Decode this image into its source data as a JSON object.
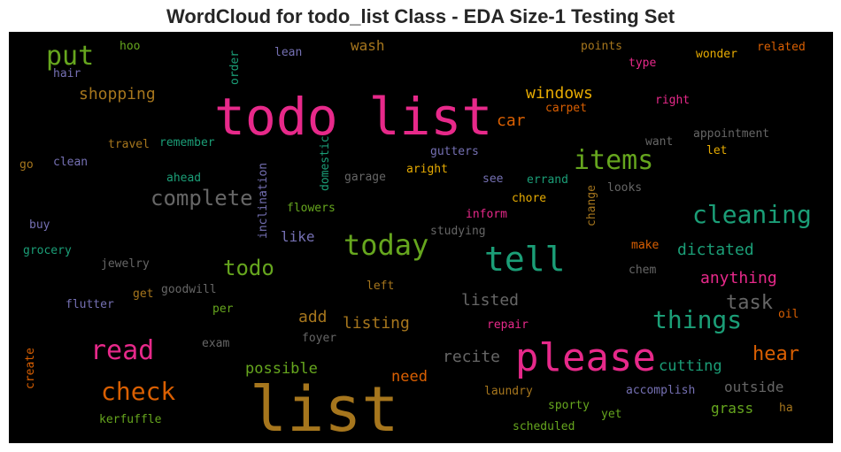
{
  "chart_data": {
    "type": "wordcloud",
    "title": "WordCloud for todo_list Class - EDA Size-1 Testing Set",
    "background": "#000000",
    "colormap": "Dark2",
    "words": [
      {
        "text": "todo list",
        "color": "#e7298a",
        "rel_size": 1.0
      },
      {
        "text": "list",
        "color": "#a6761d",
        "rel_size": 1.0
      },
      {
        "text": "please",
        "color": "#e7298a",
        "rel_size": 0.72
      },
      {
        "text": "tell",
        "color": "#1b9e77",
        "rel_size": 0.62
      },
      {
        "text": "today",
        "color": "#66a61e",
        "rel_size": 0.55
      },
      {
        "text": "items",
        "color": "#66a61e",
        "rel_size": 0.5
      },
      {
        "text": "cleaning",
        "color": "#1b9e77",
        "rel_size": 0.45
      },
      {
        "text": "things",
        "color": "#1b9e77",
        "rel_size": 0.45
      },
      {
        "text": "read",
        "color": "#e7298a",
        "rel_size": 0.48
      },
      {
        "text": "check",
        "color": "#d95f02",
        "rel_size": 0.45
      },
      {
        "text": "put",
        "color": "#66a61e",
        "rel_size": 0.45
      },
      {
        "text": "complete",
        "color": "#666666",
        "rel_size": 0.38
      },
      {
        "text": "todo",
        "color": "#66a61e",
        "rel_size": 0.37
      },
      {
        "text": "task",
        "color": "#666666",
        "rel_size": 0.35
      },
      {
        "text": "hear",
        "color": "#d95f02",
        "rel_size": 0.34
      },
      {
        "text": "windows",
        "color": "#e6ab02",
        "rel_size": 0.28
      },
      {
        "text": "car",
        "color": "#d95f02",
        "rel_size": 0.28
      },
      {
        "text": "shopping",
        "color": "#a6761d",
        "rel_size": 0.28
      },
      {
        "text": "dictated",
        "color": "#1b9e77",
        "rel_size": 0.27
      },
      {
        "text": "anything",
        "color": "#e7298a",
        "rel_size": 0.27
      },
      {
        "text": "listed",
        "color": "#666666",
        "rel_size": 0.27
      },
      {
        "text": "listing",
        "color": "#a6761d",
        "rel_size": 0.27
      },
      {
        "text": "add",
        "color": "#a6761d",
        "rel_size": 0.27
      },
      {
        "text": "recite",
        "color": "#666666",
        "rel_size": 0.27
      },
      {
        "text": "possible",
        "color": "#66a61e",
        "rel_size": 0.26
      },
      {
        "text": "need",
        "color": "#d95f02",
        "rel_size": 0.26
      },
      {
        "text": "cutting",
        "color": "#1b9e77",
        "rel_size": 0.26
      },
      {
        "text": "outside",
        "color": "#666666",
        "rel_size": 0.24
      },
      {
        "text": "grass",
        "color": "#66a61e",
        "rel_size": 0.24
      },
      {
        "text": "like",
        "color": "#7570b3",
        "rel_size": 0.24
      },
      {
        "text": "wash",
        "color": "#a6761d",
        "rel_size": 0.24
      },
      {
        "text": "travel",
        "color": "#a6761d",
        "rel_size": 0.2
      },
      {
        "text": "remember",
        "color": "#1b9e77",
        "rel_size": 0.2
      },
      {
        "text": "hoo",
        "color": "#66a61e",
        "rel_size": 0.19
      },
      {
        "text": "lean",
        "color": "#7570b3",
        "rel_size": 0.19
      },
      {
        "text": "hair",
        "color": "#7570b3",
        "rel_size": 0.19
      },
      {
        "text": "order",
        "color": "#1b9e77",
        "rel_size": 0.19
      },
      {
        "text": "points",
        "color": "#a6761d",
        "rel_size": 0.19
      },
      {
        "text": "related",
        "color": "#d95f02",
        "rel_size": 0.19
      },
      {
        "text": "wonder",
        "color": "#e6ab02",
        "rel_size": 0.19
      },
      {
        "text": "type",
        "color": "#e7298a",
        "rel_size": 0.19
      },
      {
        "text": "right",
        "color": "#e7298a",
        "rel_size": 0.19
      },
      {
        "text": "carpet",
        "color": "#d95f02",
        "rel_size": 0.19
      },
      {
        "text": "appointment",
        "color": "#666666",
        "rel_size": 0.19
      },
      {
        "text": "want",
        "color": "#666666",
        "rel_size": 0.19
      },
      {
        "text": "let",
        "color": "#e6ab02",
        "rel_size": 0.19
      },
      {
        "text": "go",
        "color": "#a6761d",
        "rel_size": 0.19
      },
      {
        "text": "clean",
        "color": "#7570b3",
        "rel_size": 0.19
      },
      {
        "text": "ahead",
        "color": "#1b9e77",
        "rel_size": 0.19
      },
      {
        "text": "inclination",
        "color": "#7570b3",
        "rel_size": 0.19
      },
      {
        "text": "domestic",
        "color": "#1b9e77",
        "rel_size": 0.19
      },
      {
        "text": "garage",
        "color": "#666666",
        "rel_size": 0.19
      },
      {
        "text": "aright",
        "color": "#e6ab02",
        "rel_size": 0.19
      },
      {
        "text": "see",
        "color": "#7570b3",
        "rel_size": 0.19
      },
      {
        "text": "errand",
        "color": "#1b9e77",
        "rel_size": 0.19
      },
      {
        "text": "gutters",
        "color": "#7570b3",
        "rel_size": 0.19
      },
      {
        "text": "looks",
        "color": "#666666",
        "rel_size": 0.19
      },
      {
        "text": "change",
        "color": "#a6761d",
        "rel_size": 0.19
      },
      {
        "text": "chore",
        "color": "#e6ab02",
        "rel_size": 0.19
      },
      {
        "text": "inform",
        "color": "#e7298a",
        "rel_size": 0.19
      },
      {
        "text": "flowers",
        "color": "#66a61e",
        "rel_size": 0.19
      },
      {
        "text": "buy",
        "color": "#7570b3",
        "rel_size": 0.19
      },
      {
        "text": "studying",
        "color": "#666666",
        "rel_size": 0.19
      },
      {
        "text": "grocery",
        "color": "#1b9e77",
        "rel_size": 0.19
      },
      {
        "text": "jewelry",
        "color": "#666666",
        "rel_size": 0.19
      },
      {
        "text": "left",
        "color": "#a6761d",
        "rel_size": 0.19
      },
      {
        "text": "make",
        "color": "#d95f02",
        "rel_size": 0.19
      },
      {
        "text": "chem",
        "color": "#666666",
        "rel_size": 0.19
      },
      {
        "text": "goodwill",
        "color": "#666666",
        "rel_size": 0.19
      },
      {
        "text": "get",
        "color": "#a6761d",
        "rel_size": 0.19
      },
      {
        "text": "flutter",
        "color": "#7570b3",
        "rel_size": 0.19
      },
      {
        "text": "per",
        "color": "#66a61e",
        "rel_size": 0.19
      },
      {
        "text": "oil",
        "color": "#d95f02",
        "rel_size": 0.19
      },
      {
        "text": "exam",
        "color": "#666666",
        "rel_size": 0.19
      },
      {
        "text": "foyer",
        "color": "#666666",
        "rel_size": 0.19
      },
      {
        "text": "repair",
        "color": "#e7298a",
        "rel_size": 0.19
      },
      {
        "text": "create",
        "color": "#d95f02",
        "rel_size": 0.19
      },
      {
        "text": "laundry",
        "color": "#a6761d",
        "rel_size": 0.19
      },
      {
        "text": "accomplish",
        "color": "#7570b3",
        "rel_size": 0.19
      },
      {
        "text": "sporty",
        "color": "#66a61e",
        "rel_size": 0.19
      },
      {
        "text": "yet",
        "color": "#66a61e",
        "rel_size": 0.19
      },
      {
        "text": "ha",
        "color": "#a6761d",
        "rel_size": 0.19
      },
      {
        "text": "kerfuffle",
        "color": "#66a61e",
        "rel_size": 0.19
      },
      {
        "text": "scheduled",
        "color": "#66a61e",
        "rel_size": 0.19
      }
    ]
  }
}
